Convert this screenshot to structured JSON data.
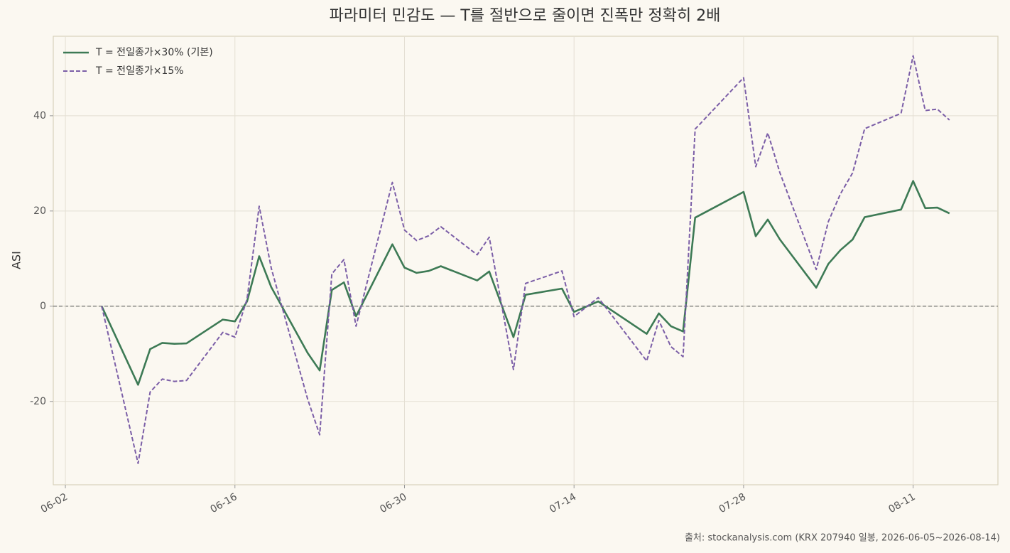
{
  "chart_data": {
    "type": "line",
    "title": "파라미터 민감도 — T를 절반으로 줄이면 진폭만 정확히 2배",
    "ylabel": "ASI",
    "source": "출처: stockanalysis.com (KRX 207940 일봉, 2026-06-05~2026-08-14)",
    "x": [
      "06-05",
      "06-08",
      "06-09",
      "06-10",
      "06-11",
      "06-12",
      "06-15",
      "06-16",
      "06-17",
      "06-18",
      "06-19",
      "06-22",
      "06-23",
      "06-24",
      "06-25",
      "06-26",
      "06-29",
      "06-30",
      "07-01",
      "07-02",
      "07-03",
      "07-06",
      "07-07",
      "07-09",
      "07-10",
      "07-13",
      "07-14",
      "07-16",
      "07-20",
      "07-21",
      "07-22",
      "07-23",
      "07-24",
      "07-28",
      "07-29",
      "07-30",
      "07-31",
      "08-03",
      "08-04",
      "08-05",
      "08-06",
      "08-07",
      "08-10",
      "08-11",
      "08-12",
      "08-13",
      "08-14"
    ],
    "series": [
      {
        "name": "T = 전일종가×30% (기본)",
        "color": "#3d7a55",
        "dash": false,
        "values": [
          0,
          -16.5,
          -9,
          -7.7,
          -7.9,
          -7.8,
          -2.8,
          -3.2,
          1,
          10.5,
          4,
          -9.8,
          -13.5,
          3.4,
          5,
          -2.1,
          13,
          8.1,
          7,
          7.4,
          8.4,
          5.4,
          7.3,
          -6.5,
          2.4,
          3.7,
          -1.2,
          1,
          -5.8,
          -1.5,
          -4.2,
          -5.3,
          18.6,
          24,
          14.7,
          18.2,
          14,
          3.9,
          8.9,
          11.8,
          14,
          18.7,
          20.3,
          26.3,
          20.6,
          20.7,
          19.5
        ]
      },
      {
        "name": "T = 전일종가×15%",
        "color": "#7b5ea7",
        "dash": true,
        "values": [
          0,
          -33,
          -18,
          -15.3,
          -15.8,
          -15.6,
          -5.5,
          -6.5,
          1.5,
          21,
          8,
          -19.5,
          -27,
          6.8,
          9.8,
          -4.2,
          26,
          16,
          13.8,
          14.8,
          16.7,
          10.8,
          14.5,
          -13.3,
          4.8,
          7.4,
          -2.2,
          1.8,
          -11.5,
          -3,
          -8.5,
          -10.6,
          37.2,
          48,
          29.3,
          36.4,
          28,
          7.7,
          17.8,
          23.6,
          28,
          37.3,
          40.5,
          52.6,
          41.1,
          41.4,
          39.1
        ]
      }
    ],
    "xlim": [
      "06-01",
      "08-18"
    ],
    "xticks": [
      "06-02",
      "06-16",
      "06-30",
      "07-14",
      "07-28",
      "08-11"
    ],
    "ylim": [
      -37.5,
      56.7
    ],
    "yticks": [
      -20,
      0,
      20,
      40
    ],
    "zero_line": true,
    "grid": true,
    "legend": "upper-left"
  }
}
